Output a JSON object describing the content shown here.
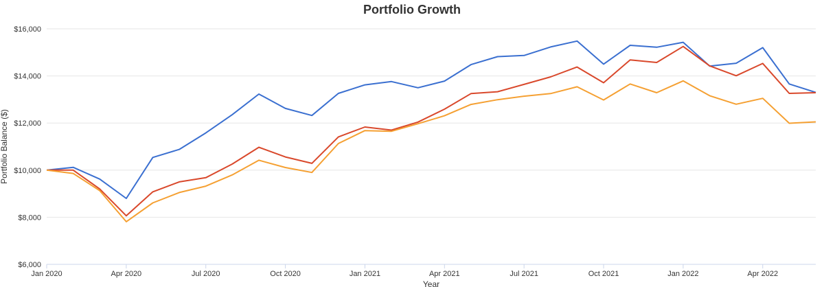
{
  "chart_data": {
    "type": "line",
    "title": "Portfolio Growth",
    "xlabel": "Year",
    "ylabel": "Portfolio Balance ($)",
    "ylim": [
      6000,
      16000
    ],
    "y_ticks": [
      {
        "value": 6000,
        "label": "$6,000"
      },
      {
        "value": 8000,
        "label": "$8,000"
      },
      {
        "value": 10000,
        "label": "$10,000"
      },
      {
        "value": 12000,
        "label": "$12,000"
      },
      {
        "value": 14000,
        "label": "$14,000"
      },
      {
        "value": 16000,
        "label": "$16,000"
      }
    ],
    "x": [
      "Jan 2020",
      "Feb 2020",
      "Mar 2020",
      "Apr 2020",
      "May 2020",
      "Jun 2020",
      "Jul 2020",
      "Aug 2020",
      "Sep 2020",
      "Oct 2020",
      "Nov 2020",
      "Dec 2020",
      "Jan 2021",
      "Feb 2021",
      "Mar 2021",
      "Apr 2021",
      "May 2021",
      "Jun 2021",
      "Jul 2021",
      "Aug 2021",
      "Sep 2021",
      "Oct 2021",
      "Nov 2021",
      "Dec 2021",
      "Jan 2022",
      "Feb 2022",
      "Mar 2022",
      "Apr 2022",
      "May 2022",
      "Jun 2022"
    ],
    "x_ticks": [
      {
        "index": 0,
        "label": "Jan 2020"
      },
      {
        "index": 3,
        "label": "Apr 2020"
      },
      {
        "index": 6,
        "label": "Jul 2020"
      },
      {
        "index": 9,
        "label": "Oct 2020"
      },
      {
        "index": 12,
        "label": "Jan 2021"
      },
      {
        "index": 15,
        "label": "Apr 2021"
      },
      {
        "index": 18,
        "label": "Jul 2021"
      },
      {
        "index": 21,
        "label": "Oct 2021"
      },
      {
        "index": 24,
        "label": "Jan 2022"
      },
      {
        "index": 27,
        "label": "Apr 2022"
      }
    ],
    "grid": true,
    "legend": "none",
    "series": [
      {
        "color": "#3a6fd0",
        "values": [
          10000,
          10120,
          9620,
          8800,
          10540,
          10880,
          11580,
          12360,
          13230,
          12620,
          12320,
          13260,
          13620,
          13760,
          13500,
          13780,
          14480,
          14820,
          14870,
          15230,
          15480,
          14500,
          15300,
          15220,
          15430,
          14420,
          14540,
          15200,
          13660,
          13300
        ]
      },
      {
        "color": "#d9482b",
        "values": [
          10000,
          10000,
          9200,
          8060,
          9080,
          9500,
          9680,
          10260,
          10970,
          10560,
          10290,
          11410,
          11830,
          11700,
          12040,
          12590,
          13250,
          13330,
          13640,
          13960,
          14380,
          13710,
          14680,
          14570,
          15250,
          14430,
          14010,
          14530,
          13260,
          13290
        ]
      },
      {
        "color": "#f5a032",
        "values": [
          10000,
          9860,
          9130,
          7810,
          8610,
          9050,
          9320,
          9800,
          10420,
          10110,
          9900,
          11130,
          11680,
          11650,
          11970,
          12310,
          12790,
          12990,
          13140,
          13250,
          13540,
          12980,
          13660,
          13290,
          13790,
          13160,
          12800,
          13050,
          11990,
          12050
        ]
      }
    ]
  }
}
